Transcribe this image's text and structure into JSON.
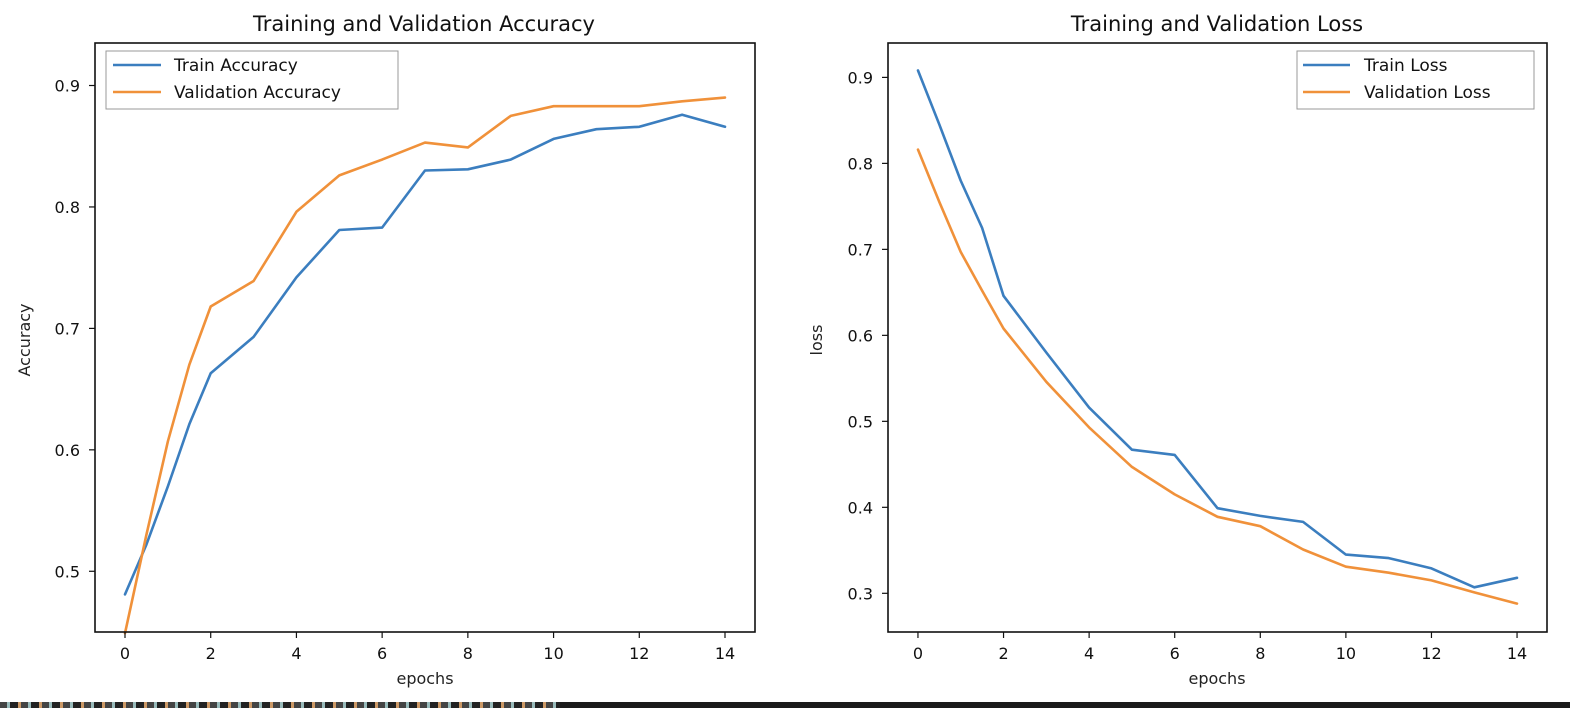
{
  "chart_data": [
    {
      "type": "line",
      "title": "Training and Validation Accuracy",
      "xlabel": "epochs",
      "ylabel": "Accuracy",
      "xlim": [
        -0.7,
        14.7
      ],
      "ylim": [
        0.45,
        0.935
      ],
      "xticks": [
        0,
        2,
        4,
        6,
        8,
        10,
        12,
        14
      ],
      "xtick_labels": [
        "0",
        "2",
        "4",
        "6",
        "8",
        "10",
        "12",
        "14"
      ],
      "yticks": [
        0.5,
        0.6,
        0.7,
        0.8,
        0.9
      ],
      "ytick_labels": [
        "0.5",
        "0.6",
        "0.7",
        "0.8",
        "0.9"
      ],
      "legend_position": "upper-left",
      "grid": false,
      "x": [
        0,
        0.5,
        1,
        1.5,
        2,
        3,
        4,
        5,
        6,
        7,
        8,
        9,
        10,
        11,
        12,
        13,
        14
      ],
      "series": [
        {
          "name": "Train Accuracy",
          "color": "#3b7ebf",
          "values": [
            0.481,
            0.522,
            0.57,
            0.621,
            0.663,
            0.693,
            0.742,
            0.781,
            0.783,
            0.83,
            0.831,
            0.839,
            0.856,
            0.864,
            0.866,
            0.876,
            0.866
          ]
        },
        {
          "name": "Validation Accuracy",
          "color": "#f0913a",
          "values": [
            0.449,
            0.53,
            0.607,
            0.67,
            0.718,
            0.739,
            0.796,
            0.826,
            0.839,
            0.853,
            0.849,
            0.875,
            0.883,
            0.883,
            0.883,
            0.887,
            0.89
          ]
        }
      ]
    },
    {
      "type": "line",
      "title": "Training and Validation Loss",
      "xlabel": "epochs",
      "ylabel": "loss",
      "xlim": [
        -0.7,
        14.7
      ],
      "ylim": [
        0.255,
        0.94
      ],
      "xticks": [
        0,
        2,
        4,
        6,
        8,
        10,
        12,
        14
      ],
      "xtick_labels": [
        "0",
        "2",
        "4",
        "6",
        "8",
        "10",
        "12",
        "14"
      ],
      "yticks": [
        0.3,
        0.4,
        0.5,
        0.6,
        0.7,
        0.8,
        0.9
      ],
      "ytick_labels": [
        "0.3",
        "0.4",
        "0.5",
        "0.6",
        "0.7",
        "0.8",
        "0.9"
      ],
      "legend_position": "upper-right",
      "grid": false,
      "x": [
        0,
        0.5,
        1,
        1.5,
        2,
        3,
        4,
        5,
        6,
        7,
        8,
        9,
        10,
        11,
        12,
        13,
        14
      ],
      "series": [
        {
          "name": "Train Loss",
          "color": "#3b7ebf",
          "values": [
            0.908,
            0.845,
            0.78,
            0.725,
            0.646,
            0.58,
            0.516,
            0.467,
            0.461,
            0.399,
            0.39,
            0.383,
            0.345,
            0.341,
            0.329,
            0.307,
            0.318
          ]
        },
        {
          "name": "Validation Loss",
          "color": "#f0913a",
          "values": [
            0.816,
            0.755,
            0.697,
            0.652,
            0.608,
            0.546,
            0.493,
            0.447,
            0.415,
            0.389,
            0.378,
            0.351,
            0.331,
            0.324,
            0.315,
            0.301,
            0.288
          ]
        }
      ]
    }
  ]
}
